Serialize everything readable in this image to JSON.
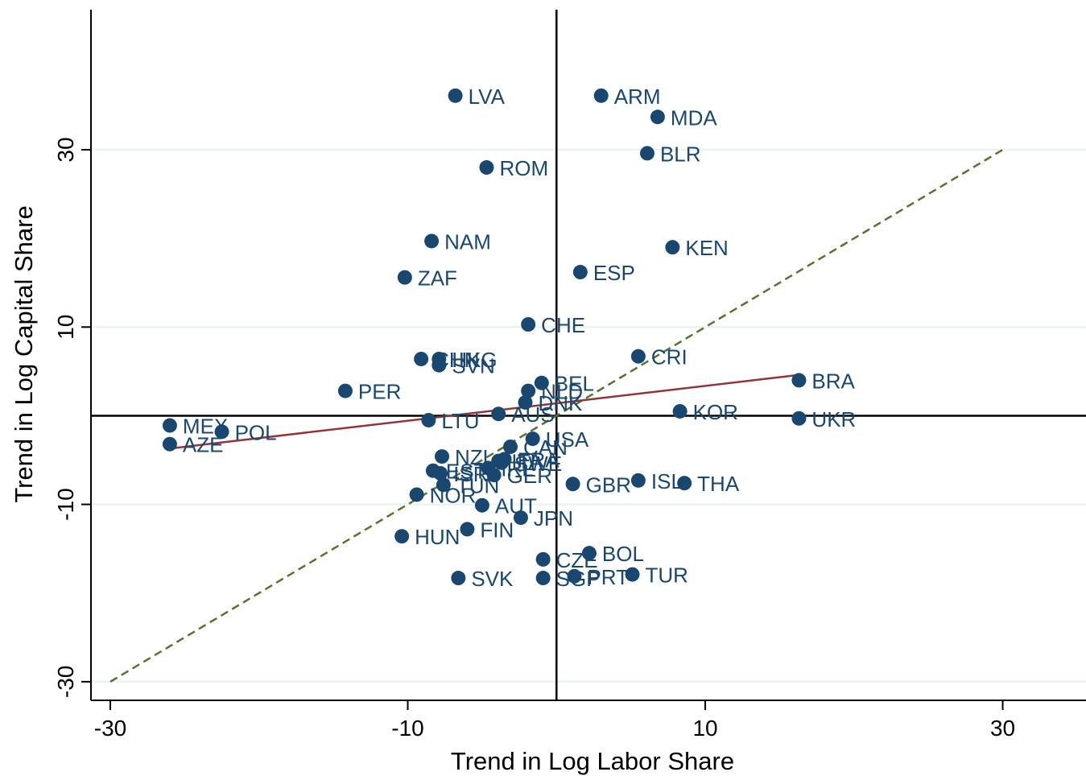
{
  "chart_data": {
    "type": "scatter",
    "title": "",
    "xlabel": "Trend in Log Labor Share",
    "ylabel": "Trend in Log Capital Share",
    "xlim": [
      -31.3,
      35.6
    ],
    "ylim": [
      -32.1,
      45.8
    ],
    "xticks": [
      -30,
      -10,
      10,
      30
    ],
    "yticks": [
      -30,
      -10,
      10,
      30
    ],
    "xtick_labels": [
      "-30",
      "-10",
      "10",
      "30"
    ],
    "ytick_labels": [
      "-30",
      "-10",
      "10",
      "30"
    ],
    "grid": "horizontal",
    "legend": "none",
    "colors": {
      "marker": "#1a476f",
      "label": "#1a476f",
      "fit_line": "#90353b",
      "diagonal": "#55752f",
      "grid": "#eaf2f3",
      "axis": "#000000"
    },
    "reference_lines": {
      "x": 0,
      "y": 0
    },
    "diagonal_line": {
      "x": [
        -30,
        30
      ],
      "y": [
        -30,
        30
      ]
    },
    "fit_line": {
      "x": [
        -26,
        16.3
      ],
      "y": [
        -3.7,
        4.6
      ]
    },
    "points": [
      {
        "label": "LVA",
        "x": -6.8,
        "y": 36.1
      },
      {
        "label": "ARM",
        "x": 3.0,
        "y": 36.1
      },
      {
        "label": "MDA",
        "x": 6.8,
        "y": 33.7
      },
      {
        "label": "BLR",
        "x": 6.1,
        "y": 29.6
      },
      {
        "label": "ROM",
        "x": -4.7,
        "y": 28.0
      },
      {
        "label": "NAM",
        "x": -8.4,
        "y": 19.7
      },
      {
        "label": "KEN",
        "x": 7.8,
        "y": 19.0
      },
      {
        "label": "ZAF",
        "x": -10.2,
        "y": 15.6
      },
      {
        "label": "ESP",
        "x": 1.6,
        "y": 16.2
      },
      {
        "label": "CHE",
        "x": -1.9,
        "y": 10.3
      },
      {
        "label": "CHN",
        "x": -9.1,
        "y": 6.4
      },
      {
        "label": "HKG",
        "x": -7.9,
        "y": 6.4
      },
      {
        "label": "SVN",
        "x": -7.9,
        "y": 5.7
      },
      {
        "label": "CRI",
        "x": 5.5,
        "y": 6.7
      },
      {
        "label": "BRA",
        "x": 16.3,
        "y": 4.0
      },
      {
        "label": "BEL",
        "x": -1.0,
        "y": 3.7
      },
      {
        "label": "PER",
        "x": -14.2,
        "y": 2.8
      },
      {
        "label": "NLD",
        "x": -1.9,
        "y": 2.8
      },
      {
        "label": "DNK",
        "x": -2.1,
        "y": 1.5
      },
      {
        "label": "KOR",
        "x": 8.3,
        "y": 0.5
      },
      {
        "label": "AUS",
        "x": -3.9,
        "y": 0.2
      },
      {
        "label": "UKR",
        "x": 16.3,
        "y": -0.3
      },
      {
        "label": "LTU",
        "x": -8.6,
        "y": -0.5
      },
      {
        "label": "MEX",
        "x": -26.0,
        "y": -1.1
      },
      {
        "label": "POL",
        "x": -22.5,
        "y": -1.8
      },
      {
        "label": "AZE",
        "x": -26.0,
        "y": -3.2
      },
      {
        "label": "USA",
        "x": -1.6,
        "y": -2.6
      },
      {
        "label": "CAN",
        "x": -3.1,
        "y": -3.5
      },
      {
        "label": "NZL",
        "x": -7.7,
        "y": -4.6
      },
      {
        "label": "FRA",
        "x": -3.5,
        "y": -4.9
      },
      {
        "label": "ITA",
        "x": -3.9,
        "y": -5.1
      },
      {
        "label": "SWE",
        "x": -3.7,
        "y": -5.3
      },
      {
        "label": "IRL",
        "x": -4.6,
        "y": -5.9
      },
      {
        "label": "EST",
        "x": -8.3,
        "y": -6.2
      },
      {
        "label": "ISR",
        "x": -7.8,
        "y": -6.5
      },
      {
        "label": "GER",
        "x": -4.2,
        "y": -6.7
      },
      {
        "label": "TUN",
        "x": -7.6,
        "y": -7.8
      },
      {
        "label": "GBR",
        "x": 1.1,
        "y": -7.7
      },
      {
        "label": "ISL",
        "x": 5.5,
        "y": -7.3
      },
      {
        "label": "THA",
        "x": 8.6,
        "y": -7.6
      },
      {
        "label": "NOR",
        "x": -9.4,
        "y": -8.9
      },
      {
        "label": "AUT",
        "x": -5.0,
        "y": -10.1
      },
      {
        "label": "JPN",
        "x": -2.4,
        "y": -11.5
      },
      {
        "label": "FIN",
        "x": -6.0,
        "y": -12.8
      },
      {
        "label": "HUN",
        "x": -10.4,
        "y": -13.6
      },
      {
        "label": "BOL",
        "x": 2.2,
        "y": -15.5
      },
      {
        "label": "CZE",
        "x": -0.9,
        "y": -16.2
      },
      {
        "label": "SVK",
        "x": -6.6,
        "y": -18.3
      },
      {
        "label": "SGP",
        "x": -0.9,
        "y": -18.3
      },
      {
        "label": "PRT",
        "x": 1.2,
        "y": -18.1
      },
      {
        "label": "TUR",
        "x": 5.1,
        "y": -17.9
      }
    ]
  }
}
